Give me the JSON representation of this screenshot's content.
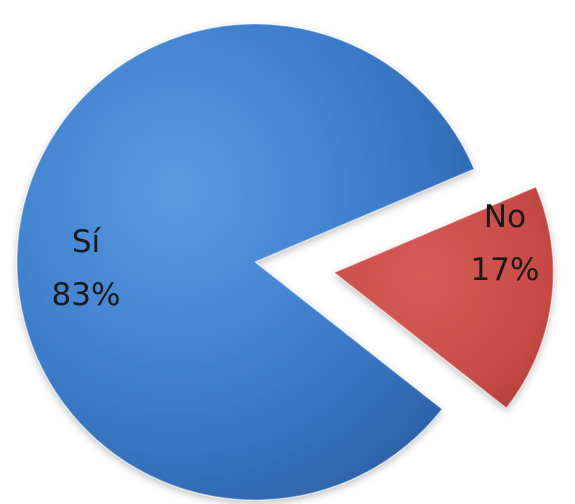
{
  "chart_data": {
    "type": "pie",
    "slices": [
      {
        "label": "Sí",
        "value": 83,
        "value_label": "83%",
        "color": "#3c7ccb",
        "exploded": false
      },
      {
        "label": "No",
        "value": 17,
        "value_label": "17%",
        "color": "#c74a46",
        "exploded": true
      }
    ],
    "legend": "none"
  }
}
